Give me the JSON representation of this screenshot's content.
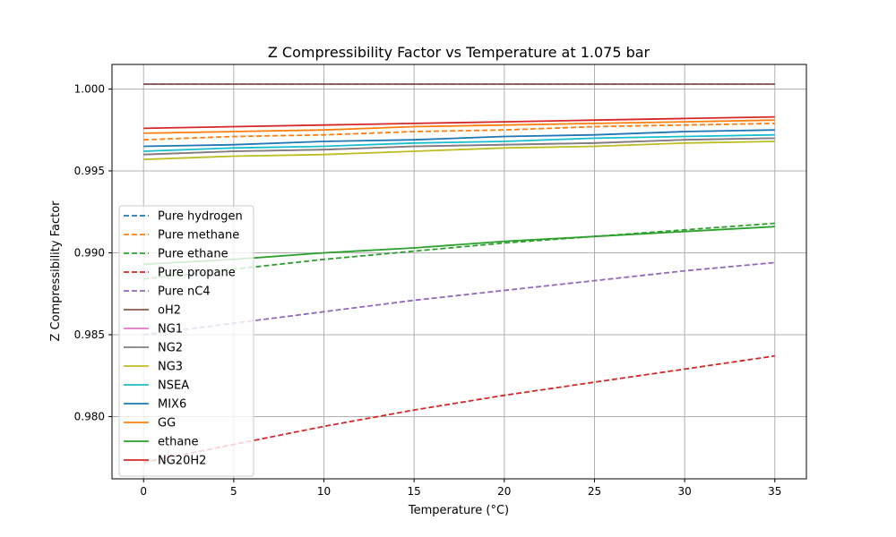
{
  "chart_data": {
    "type": "line",
    "title": "Z Compressibility Factor vs Temperature at 1.075 bar",
    "xlabel": "Temperature (°C)",
    "ylabel": "Z Compressibility Factor",
    "xlim": [
      -1.75,
      36.75
    ],
    "ylim": [
      0.9762,
      1.0015
    ],
    "x_ticks": [
      0,
      5,
      10,
      15,
      20,
      25,
      30,
      35
    ],
    "y_ticks": [
      0.98,
      0.985,
      0.99,
      0.995,
      1.0
    ],
    "x_tick_labels": [
      "0",
      "5",
      "10",
      "15",
      "20",
      "25",
      "30",
      "35"
    ],
    "y_tick_labels": [
      "0.980",
      "0.985",
      "0.990",
      "0.995",
      "1.000"
    ],
    "grid": true,
    "legend_position": "center-left",
    "x": [
      0,
      5,
      10,
      15,
      20,
      25,
      30,
      35
    ],
    "series": [
      {
        "name": "Pure hydrogen",
        "color": "#1f77b4",
        "dashed": true,
        "values": [
          1.0003,
          1.0003,
          1.0003,
          1.0003,
          1.0003,
          1.0003,
          1.0003,
          1.0003
        ]
      },
      {
        "name": "Pure methane",
        "color": "#ff7f0e",
        "dashed": true,
        "values": [
          0.9969,
          0.9971,
          0.9972,
          0.9974,
          0.9975,
          0.9977,
          0.9978,
          0.9979
        ]
      },
      {
        "name": "Pure ethane",
        "color": "#2ca02c",
        "dashed": true,
        "values": [
          0.9884,
          0.989,
          0.9896,
          0.9901,
          0.9906,
          0.991,
          0.9914,
          0.9918
        ]
      },
      {
        "name": "Pure propane",
        "color": "#d62728",
        "dashed": true,
        "values": [
          0.9772,
          0.9783,
          0.9794,
          0.9804,
          0.9813,
          0.9821,
          0.9829,
          0.9837
        ]
      },
      {
        "name": "Pure nC4",
        "color": "#9467bd",
        "dashed": true,
        "values": [
          0.985,
          0.9857,
          0.9864,
          0.9871,
          0.9877,
          0.9883,
          0.9889,
          0.9894
        ]
      },
      {
        "name": "oH2",
        "color": "#8c564b",
        "dashed": false,
        "values": [
          1.0003,
          1.0003,
          1.0003,
          1.0003,
          1.0003,
          1.0003,
          1.0003,
          1.0003
        ]
      },
      {
        "name": "NG1",
        "color": "#e377c2",
        "dashed": false,
        "values": [
          0.996,
          0.9962,
          0.9963,
          0.9965,
          0.9966,
          0.9967,
          0.9969,
          0.997
        ]
      },
      {
        "name": "NG2",
        "color": "#7f7f7f",
        "dashed": false,
        "values": [
          0.996,
          0.9962,
          0.9963,
          0.9965,
          0.9966,
          0.9967,
          0.9969,
          0.997
        ]
      },
      {
        "name": "NG3",
        "color": "#bcbd22",
        "dashed": false,
        "values": [
          0.9957,
          0.9959,
          0.996,
          0.9962,
          0.9964,
          0.9965,
          0.9967,
          0.9968
        ]
      },
      {
        "name": "NSEA",
        "color": "#17becf",
        "dashed": false,
        "values": [
          0.9962,
          0.9964,
          0.9965,
          0.9967,
          0.9968,
          0.997,
          0.9971,
          0.9972
        ]
      },
      {
        "name": "MIX6",
        "color": "#1f77b4",
        "dashed": false,
        "values": [
          0.9965,
          0.9966,
          0.9968,
          0.9969,
          0.9971,
          0.9972,
          0.9974,
          0.9975
        ]
      },
      {
        "name": "GG",
        "color": "#ff7f0e",
        "dashed": false,
        "values": [
          0.9973,
          0.9974,
          0.9975,
          0.9977,
          0.9978,
          0.9979,
          0.998,
          0.9981
        ]
      },
      {
        "name": "ethane",
        "color": "#2ca02c",
        "dashed": false,
        "values": [
          0.9893,
          0.9896,
          0.99,
          0.9903,
          0.9907,
          0.991,
          0.9913,
          0.9916
        ]
      },
      {
        "name": "NG20H2",
        "color": "#d62728",
        "dashed": false,
        "values": [
          0.9976,
          0.9977,
          0.9978,
          0.9979,
          0.998,
          0.9981,
          0.9982,
          0.9983
        ]
      }
    ]
  }
}
